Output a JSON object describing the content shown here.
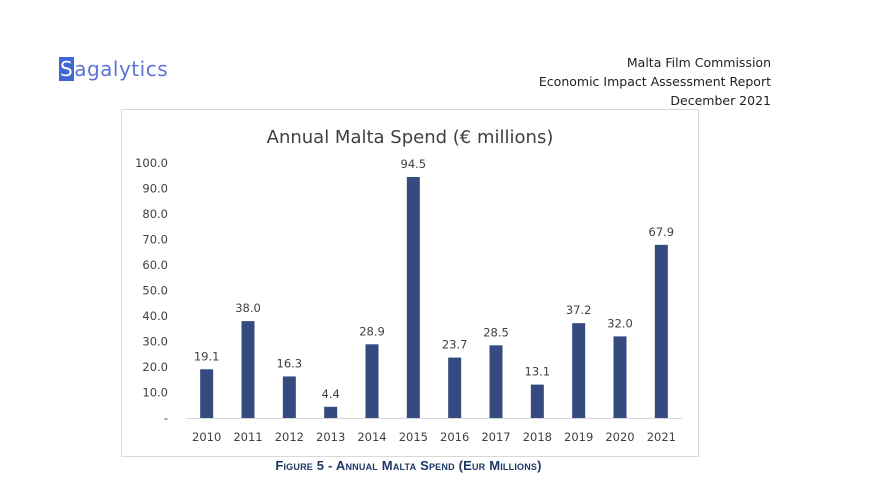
{
  "header": {
    "logo_first": "S",
    "logo_rest": "agalytics",
    "lines": [
      "Malta Film Commission",
      "Economic Impact Assessment Report",
      "December 2021"
    ]
  },
  "colors": {
    "bar": "#354a7e",
    "axis_text": "#404040",
    "title_text": "#404040",
    "caption_text": "#1f3864",
    "logo": "#5b73d8"
  },
  "caption": "Figure 5 - Annual Malta Spend (Eur Millions)",
  "chart_data": {
    "type": "bar",
    "title": "Annual Malta Spend (€ millions)",
    "xlabel": "",
    "ylabel": "",
    "categories": [
      "2010",
      "2011",
      "2012",
      "2013",
      "2014",
      "2015",
      "2016",
      "2017",
      "2018",
      "2019",
      "2020",
      "2021"
    ],
    "values": [
      19.1,
      38.0,
      16.3,
      4.4,
      28.9,
      94.5,
      23.7,
      28.5,
      13.1,
      37.2,
      32.0,
      67.9
    ],
    "data_labels": [
      "19.1",
      "38.0",
      "16.3",
      "4.4",
      "28.9",
      "94.5",
      "23.7",
      "28.5",
      "13.1",
      "37.2",
      "32.0",
      "67.9"
    ],
    "ylim": [
      0,
      100
    ],
    "yticks": [
      "-",
      "10.0",
      "20.0",
      "30.0",
      "40.0",
      "50.0",
      "60.0",
      "70.0",
      "80.0",
      "90.0",
      "100.0"
    ],
    "ytick_values": [
      0,
      10,
      20,
      30,
      40,
      50,
      60,
      70,
      80,
      90,
      100
    ],
    "grid": false,
    "legend": "none"
  }
}
